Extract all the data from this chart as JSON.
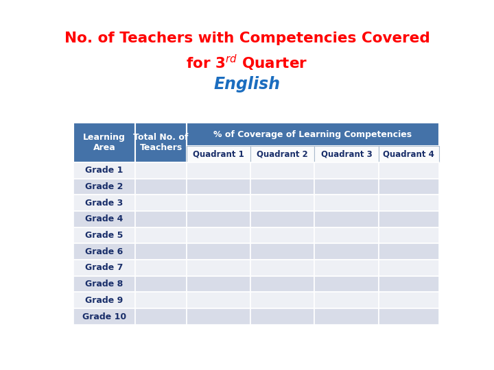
{
  "title_line1": "No. of Teachers with Competencies Covered",
  "title_line2": "for 3$^{rd}$ Quarter",
  "subtitle": "English",
  "title_color": "#FF0000",
  "subtitle_color": "#1B6DBF",
  "header_bg_color": "#4472A8",
  "header_text_color": "#FFFFFF",
  "grade_rows": [
    "Grade 1",
    "Grade 2",
    "Grade 3",
    "Grade 4",
    "Grade 5",
    "Grade 6",
    "Grade 7",
    "Grade 8",
    "Grade 9",
    "Grade 10"
  ],
  "col_headers_row2": [
    "Quadrant 1",
    "Quadrant 2",
    "Quadrant 3",
    "Quadrant 4"
  ],
  "background_color": "#FFFFFF",
  "row_bg_even": "#EEF0F5",
  "row_bg_odd": "#D8DCE8",
  "grade_cell_even": "#EEF0F5",
  "grade_cell_odd": "#D8DCE8",
  "grade_text_color": "#1A2F6A",
  "edge_color": "#FFFFFF"
}
